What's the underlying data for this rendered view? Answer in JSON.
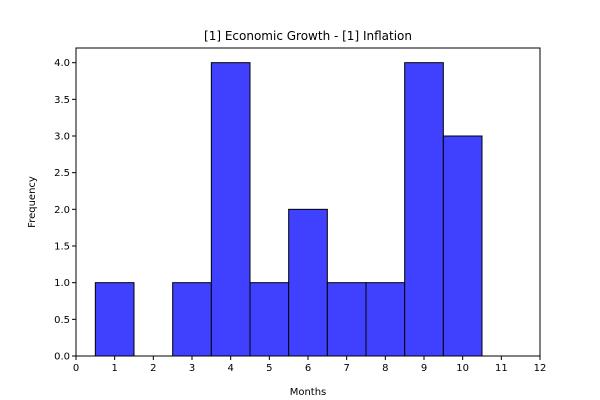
{
  "chart_data": {
    "type": "bar",
    "title": "[1] Economic Growth - [1] Inflation",
    "xlabel": "Months",
    "ylabel": "Frequency",
    "xlim": [
      0,
      12
    ],
    "ylim": [
      0,
      4.2
    ],
    "bar_width": 1,
    "x": [
      1,
      2,
      3,
      4,
      5,
      6,
      7,
      8,
      9,
      10
    ],
    "values": [
      1,
      0,
      1,
      4,
      1,
      2,
      1,
      1,
      4,
      3
    ],
    "xticks": [
      0,
      1,
      2,
      3,
      4,
      5,
      6,
      7,
      8,
      9,
      10,
      11,
      12
    ],
    "xtick_labels": [
      "0",
      "1",
      "2",
      "3",
      "4",
      "5",
      "6",
      "7",
      "8",
      "9",
      "10",
      "11",
      "12"
    ],
    "yticks": [
      0,
      0.5,
      1,
      1.5,
      2,
      2.5,
      3,
      3.5,
      4
    ],
    "ytick_labels": [
      "0.0",
      "0.5",
      "1.0",
      "1.5",
      "2.0",
      "2.5",
      "3.0",
      "3.5",
      "4.0"
    ],
    "bar_color": "#4040ff",
    "edge_color": "#000000",
    "grid": false,
    "legend": "none"
  }
}
